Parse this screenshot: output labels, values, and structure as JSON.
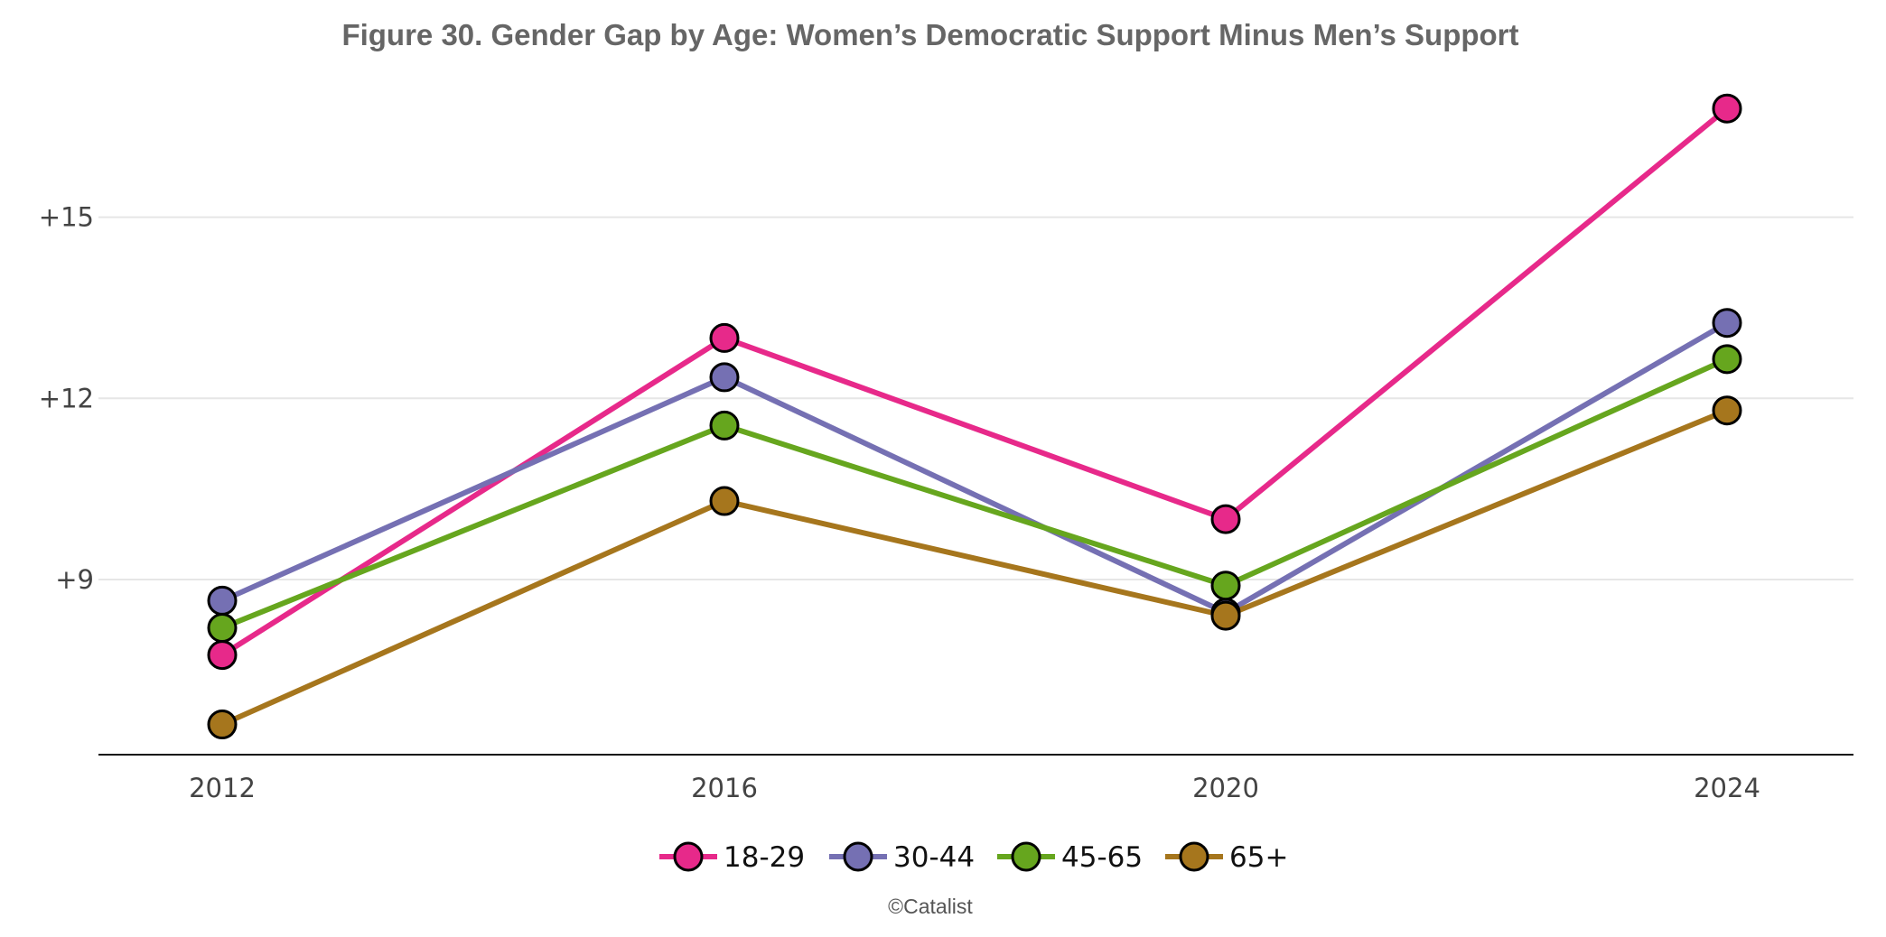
{
  "chart_data": {
    "type": "line",
    "title": "Figure 30. Gender Gap by Age: Women’s Democratic Support Minus Men’s Support",
    "x": [
      "2012",
      "2016",
      "2020",
      "2024"
    ],
    "y_ticks": [
      {
        "value": 9,
        "label": "+9"
      },
      {
        "value": 12,
        "label": "+12"
      },
      {
        "value": 15,
        "label": "+15"
      }
    ],
    "ylim": [
      6.1,
      17.7
    ],
    "grid": "horizontal",
    "legend_position": "bottom-center",
    "series": [
      {
        "name": "18-29",
        "color": "#E7298A",
        "values": [
          7.75,
          13.0,
          10.0,
          16.8
        ]
      },
      {
        "name": "30-44",
        "color": "#7570B3",
        "values": [
          8.65,
          12.35,
          8.45,
          13.25
        ]
      },
      {
        "name": "45-65",
        "color": "#66A61E",
        "values": [
          8.2,
          11.55,
          8.9,
          12.65
        ]
      },
      {
        "name": "65+",
        "color": "#A6761D",
        "values": [
          6.6,
          10.3,
          8.4,
          11.8
        ]
      }
    ],
    "credit": "©Catalist"
  }
}
